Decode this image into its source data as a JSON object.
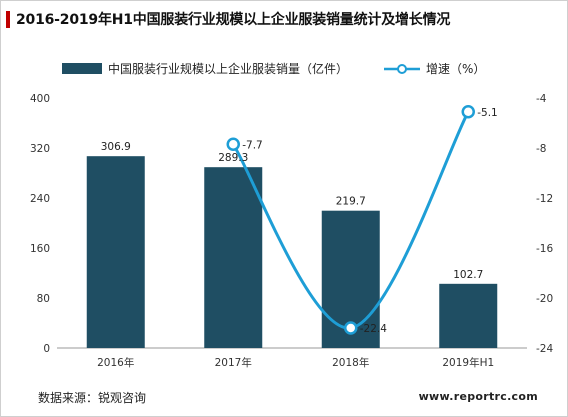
{
  "title": "2016-2019年H1中国服装行业规模以上企业服装销量统计及增长情况",
  "source": "数据来源：锐观咨询",
  "website": "www.reportrc.com",
  "chart_data": {
    "type": "bar",
    "categories": [
      "2016年",
      "2017年",
      "2018年",
      "2019年H1"
    ],
    "series": [
      {
        "name": "中国服装行业规模以上企业服装销量（亿件）",
        "type": "bar",
        "axis": "left",
        "values": [
          306.9,
          289.3,
          219.7,
          102.7
        ],
        "labels": [
          "306.9",
          "289.3",
          "219.7",
          "102.7"
        ]
      },
      {
        "name": "增速（%）",
        "type": "line",
        "axis": "right",
        "values": [
          null,
          -7.7,
          -22.4,
          -5.1
        ],
        "labels": [
          "",
          "-7.7",
          "-22.4",
          "-5.1"
        ]
      }
    ],
    "y_left": {
      "ticks": [
        "0",
        "80",
        "160",
        "240",
        "320",
        "400"
      ],
      "range": [
        0,
        400
      ]
    },
    "y_right": {
      "ticks": [
        "-4",
        "-8",
        "-12",
        "-16",
        "-20",
        "-24"
      ],
      "range": [
        -24,
        -4
      ]
    },
    "grid": false,
    "legend_position": "top",
    "colors": {
      "bar": "#1f4e63",
      "line": "#1e9ed6"
    }
  }
}
